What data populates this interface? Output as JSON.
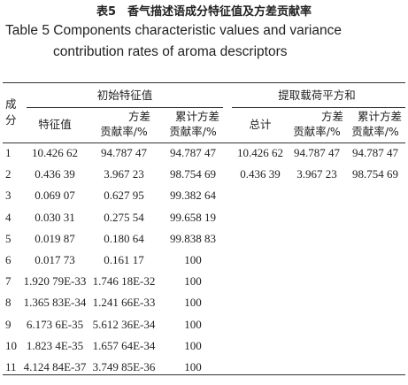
{
  "header": {
    "title": "表5　香气描述语成分特征值及方差贡献率",
    "subtitle": "Table 5 Components characteristic values and variance contribution rates of aroma descriptors"
  },
  "table": {
    "row_header": "成分",
    "groups": [
      "初始特征值",
      "提取载荷平方和"
    ],
    "columns": [
      [
        "特征值"
      ],
      [
        "方差",
        "贡献率/%"
      ],
      [
        "累计方差",
        "贡献率/%"
      ],
      [
        "总计"
      ],
      [
        "方差",
        "贡献率/%"
      ],
      [
        "累计方差",
        "贡献率/%"
      ]
    ],
    "rows": [
      [
        "1",
        "10.426 62",
        "94.787 47",
        "94.787 47",
        "10.426 62",
        "94.787 47",
        "94.787 47"
      ],
      [
        "2",
        "0.436 39",
        "3.967 23",
        "98.754 69",
        "0.436 39",
        "3.967 23",
        "98.754 69"
      ],
      [
        "3",
        "0.069 07",
        "0.627 95",
        "99.382 64"
      ],
      [
        "4",
        "0.030 31",
        "0.275 54",
        "99.658 19"
      ],
      [
        "5",
        "0.019 87",
        "0.180 64",
        "99.838 83"
      ],
      [
        "6",
        "0.017 73",
        "0.161 17",
        "100"
      ],
      [
        "7",
        "1.920 79E-33",
        "1.746 18E-32",
        "100"
      ],
      [
        "8",
        "1.365 83E-34",
        "1.241 66E-33",
        "100"
      ],
      [
        "9",
        "6.173 6E-35",
        "5.612 36E-34",
        "100"
      ],
      [
        "10",
        "1.823 4E-35",
        "1.657 64E-34",
        "100"
      ],
      [
        "11",
        "4.124 84E-37",
        "3.749 85E-36",
        "100"
      ]
    ]
  }
}
